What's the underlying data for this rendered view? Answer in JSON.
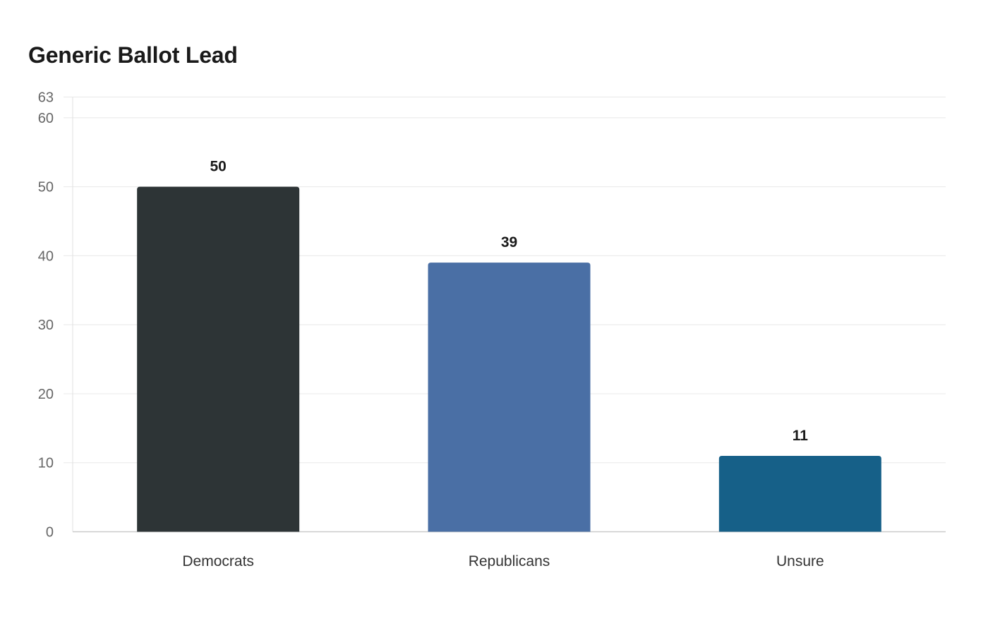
{
  "chart_data": {
    "type": "bar",
    "title": "Generic Ballot Lead",
    "xlabel": "",
    "ylabel": "",
    "categories": [
      "Democrats",
      "Republicans",
      "Unsure"
    ],
    "values": [
      50,
      39,
      11
    ],
    "colors": [
      "#2d3436",
      "#4a6fa5",
      "#166088"
    ],
    "ylim": [
      0,
      63
    ],
    "yticks": [
      0,
      10,
      20,
      30,
      40,
      50,
      60,
      63
    ],
    "grid": true,
    "legend": "none",
    "data_labels": true
  }
}
